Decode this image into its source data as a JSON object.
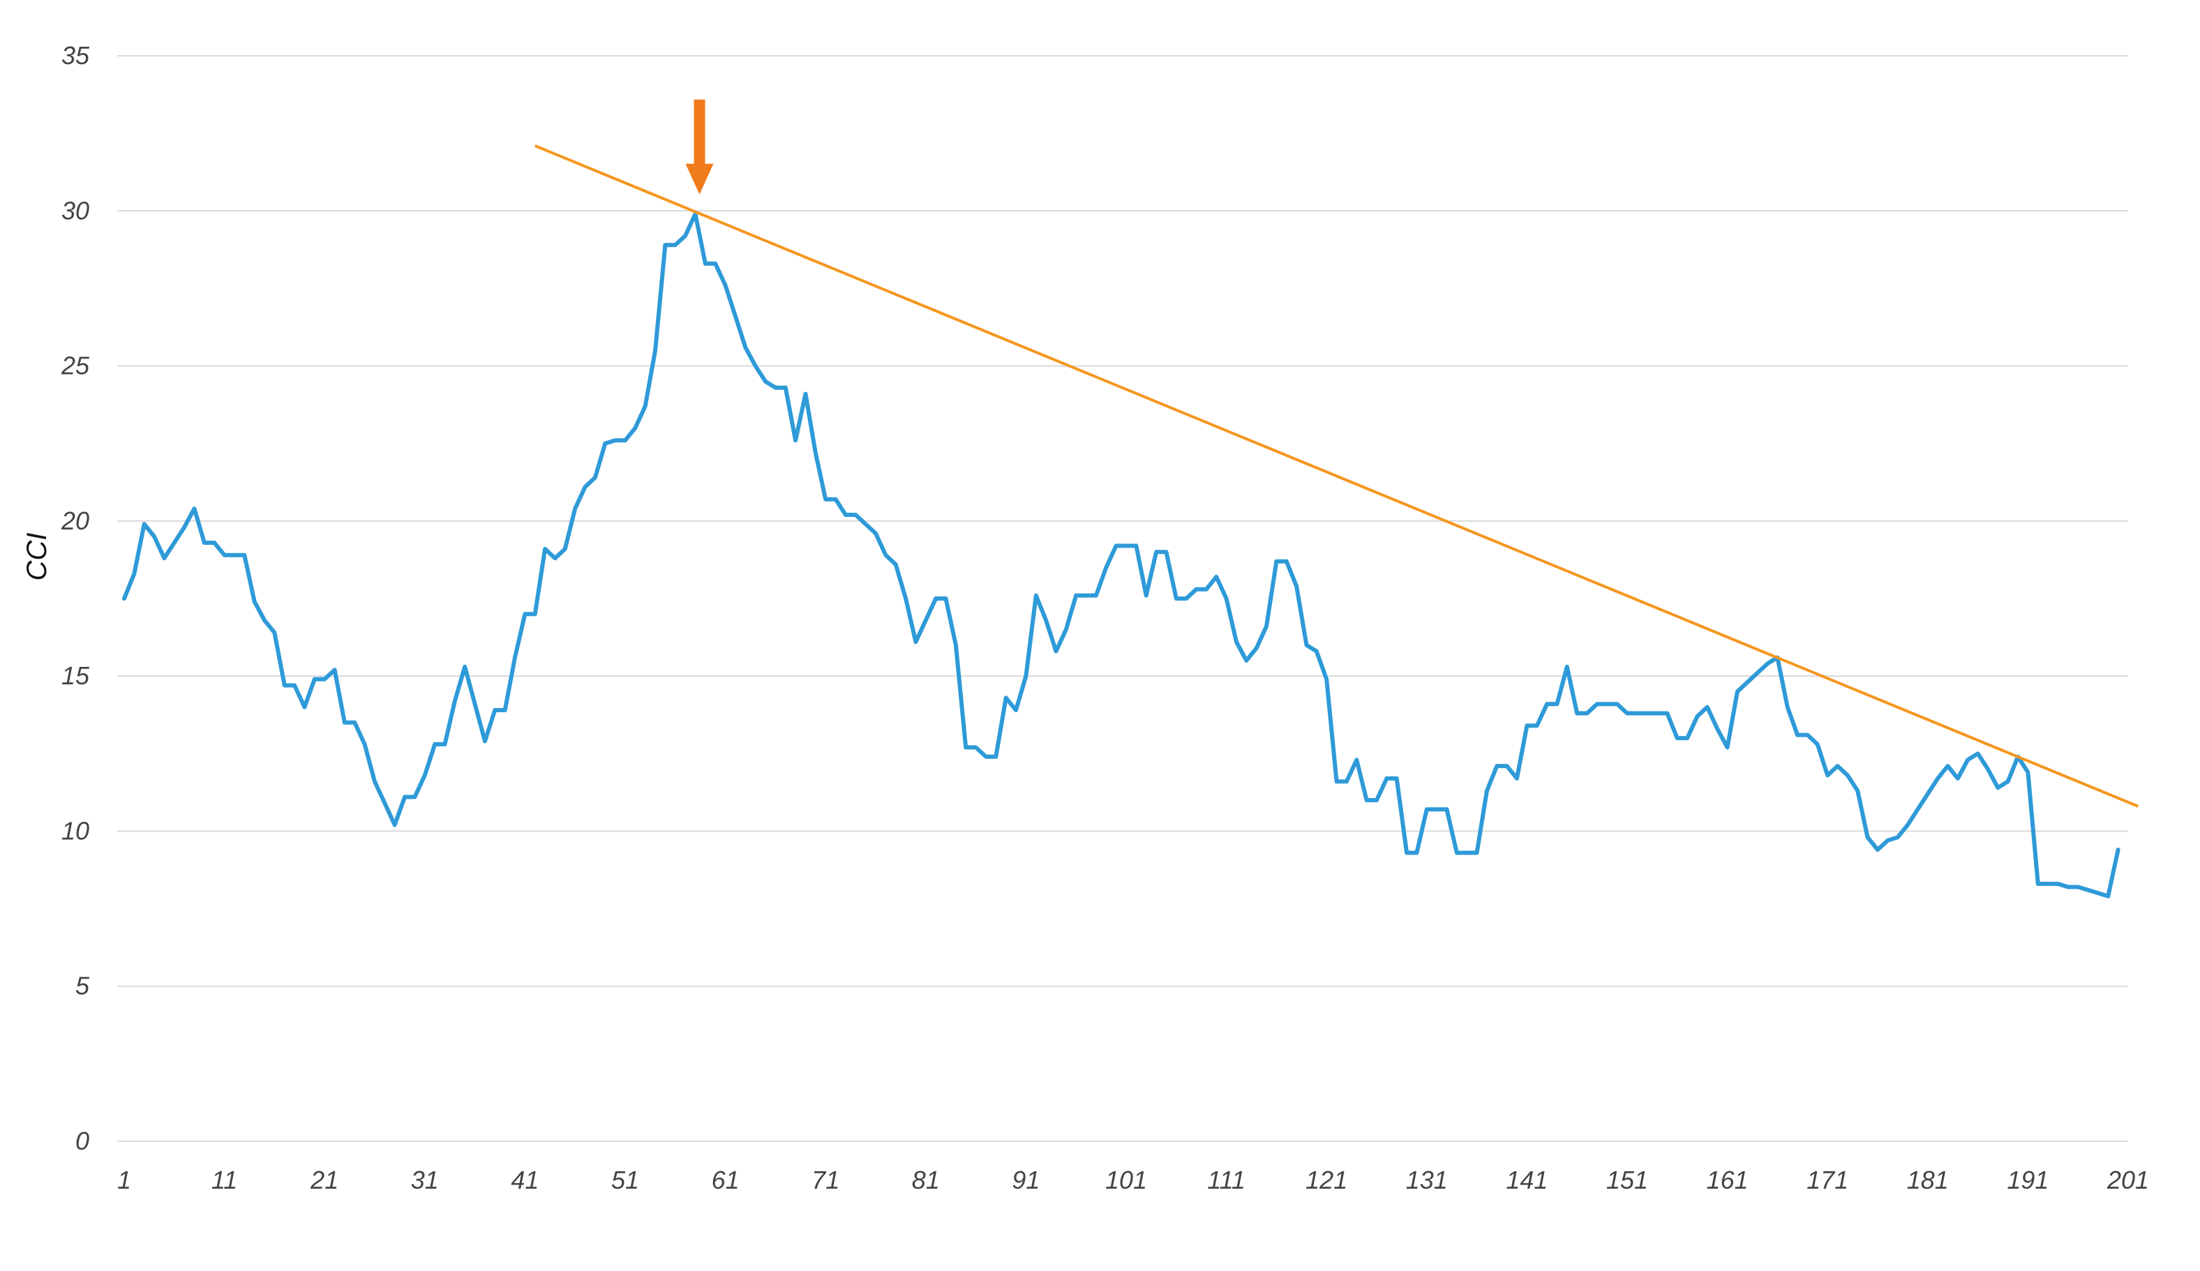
{
  "chart_data": {
    "type": "line",
    "title": "",
    "xlabel": "",
    "ylabel": "CCI",
    "ylim": [
      0,
      35
    ],
    "yticks": [
      0,
      5,
      10,
      15,
      20,
      25,
      30,
      35
    ],
    "xlim": [
      1,
      201
    ],
    "xticks": [
      1,
      11,
      21,
      31,
      41,
      51,
      61,
      71,
      81,
      91,
      101,
      111,
      121,
      131,
      141,
      151,
      161,
      171,
      181,
      191,
      201
    ],
    "grid": "horizontal",
    "legend": "none",
    "series": [
      {
        "color": "#2e9ad8",
        "points": [
          [
            1,
            17.5
          ],
          [
            2,
            18.3
          ],
          [
            3,
            19.9
          ],
          [
            4,
            19.5
          ],
          [
            5,
            18.8
          ],
          [
            6,
            19.3
          ],
          [
            7,
            19.8
          ],
          [
            8,
            20.4
          ],
          [
            9,
            19.3
          ],
          [
            10,
            19.3
          ],
          [
            11,
            18.9
          ],
          [
            12,
            18.9
          ],
          [
            13,
            18.9
          ],
          [
            14,
            17.4
          ],
          [
            15,
            16.8
          ],
          [
            16,
            16.4
          ],
          [
            17,
            14.7
          ],
          [
            18,
            14.7
          ],
          [
            19,
            14.0
          ],
          [
            20,
            14.9
          ],
          [
            21,
            14.9
          ],
          [
            22,
            15.2
          ],
          [
            23,
            13.5
          ],
          [
            24,
            13.5
          ],
          [
            25,
            12.8
          ],
          [
            26,
            11.6
          ],
          [
            27,
            10.9
          ],
          [
            28,
            10.2
          ],
          [
            29,
            11.1
          ],
          [
            30,
            11.1
          ],
          [
            31,
            11.8
          ],
          [
            32,
            12.8
          ],
          [
            33,
            12.8
          ],
          [
            34,
            14.2
          ],
          [
            35,
            15.3
          ],
          [
            36,
            14.1
          ],
          [
            37,
            12.9
          ],
          [
            38,
            13.9
          ],
          [
            39,
            13.9
          ],
          [
            40,
            15.6
          ],
          [
            41,
            17.0
          ],
          [
            42,
            17.0
          ],
          [
            43,
            19.1
          ],
          [
            44,
            18.8
          ],
          [
            45,
            19.1
          ],
          [
            46,
            20.4
          ],
          [
            47,
            21.1
          ],
          [
            48,
            21.4
          ],
          [
            49,
            22.5
          ],
          [
            50,
            22.6
          ],
          [
            51,
            22.6
          ],
          [
            52,
            23.0
          ],
          [
            53,
            23.7
          ],
          [
            54,
            25.5
          ],
          [
            55,
            28.9
          ],
          [
            56,
            28.9
          ],
          [
            57,
            29.2
          ],
          [
            58,
            29.9
          ],
          [
            59,
            28.3
          ],
          [
            60,
            28.3
          ],
          [
            61,
            27.6
          ],
          [
            62,
            26.6
          ],
          [
            63,
            25.6
          ],
          [
            64,
            25.0
          ],
          [
            65,
            24.5
          ],
          [
            66,
            24.3
          ],
          [
            67,
            24.3
          ],
          [
            68,
            22.6
          ],
          [
            69,
            24.1
          ],
          [
            70,
            22.2
          ],
          [
            71,
            20.7
          ],
          [
            72,
            20.7
          ],
          [
            73,
            20.2
          ],
          [
            74,
            20.2
          ],
          [
            75,
            19.9
          ],
          [
            76,
            19.6
          ],
          [
            77,
            18.9
          ],
          [
            78,
            18.6
          ],
          [
            79,
            17.5
          ],
          [
            80,
            16.1
          ],
          [
            81,
            16.8
          ],
          [
            82,
            17.5
          ],
          [
            83,
            17.5
          ],
          [
            84,
            16.0
          ],
          [
            85,
            12.7
          ],
          [
            86,
            12.7
          ],
          [
            87,
            12.4
          ],
          [
            88,
            12.4
          ],
          [
            89,
            14.3
          ],
          [
            90,
            13.9
          ],
          [
            91,
            15.0
          ],
          [
            92,
            17.6
          ],
          [
            93,
            16.8
          ],
          [
            94,
            15.8
          ],
          [
            95,
            16.5
          ],
          [
            96,
            17.6
          ],
          [
            97,
            17.6
          ],
          [
            98,
            17.6
          ],
          [
            99,
            18.5
          ],
          [
            100,
            19.2
          ],
          [
            101,
            19.2
          ],
          [
            102,
            19.2
          ],
          [
            103,
            17.6
          ],
          [
            104,
            19.0
          ],
          [
            105,
            19.0
          ],
          [
            106,
            17.5
          ],
          [
            107,
            17.5
          ],
          [
            108,
            17.8
          ],
          [
            109,
            17.8
          ],
          [
            110,
            18.2
          ],
          [
            111,
            17.5
          ],
          [
            112,
            16.1
          ],
          [
            113,
            15.5
          ],
          [
            114,
            15.9
          ],
          [
            115,
            16.6
          ],
          [
            116,
            18.7
          ],
          [
            117,
            18.7
          ],
          [
            118,
            17.9
          ],
          [
            119,
            16.0
          ],
          [
            120,
            15.8
          ],
          [
            121,
            14.9
          ],
          [
            122,
            11.6
          ],
          [
            123,
            11.6
          ],
          [
            124,
            12.3
          ],
          [
            125,
            11.0
          ],
          [
            126,
            11.0
          ],
          [
            127,
            11.7
          ],
          [
            128,
            11.7
          ],
          [
            129,
            9.3
          ],
          [
            130,
            9.3
          ],
          [
            131,
            10.7
          ],
          [
            132,
            10.7
          ],
          [
            133,
            10.7
          ],
          [
            134,
            9.3
          ],
          [
            135,
            9.3
          ],
          [
            136,
            9.3
          ],
          [
            137,
            11.3
          ],
          [
            138,
            12.1
          ],
          [
            139,
            12.1
          ],
          [
            140,
            11.7
          ],
          [
            141,
            13.4
          ],
          [
            142,
            13.4
          ],
          [
            143,
            14.1
          ],
          [
            144,
            14.1
          ],
          [
            145,
            15.3
          ],
          [
            146,
            13.8
          ],
          [
            147,
            13.8
          ],
          [
            148,
            14.1
          ],
          [
            149,
            14.1
          ],
          [
            150,
            14.1
          ],
          [
            151,
            13.8
          ],
          [
            152,
            13.8
          ],
          [
            153,
            13.8
          ],
          [
            154,
            13.8
          ],
          [
            155,
            13.8
          ],
          [
            156,
            13.0
          ],
          [
            157,
            13.0
          ],
          [
            158,
            13.7
          ],
          [
            159,
            14.0
          ],
          [
            160,
            13.3
          ],
          [
            161,
            12.7
          ],
          [
            162,
            14.5
          ],
          [
            163,
            14.8
          ],
          [
            164,
            15.1
          ],
          [
            165,
            15.4
          ],
          [
            166,
            15.6
          ],
          [
            167,
            14.0
          ],
          [
            168,
            13.1
          ],
          [
            169,
            13.1
          ],
          [
            170,
            12.8
          ],
          [
            171,
            11.8
          ],
          [
            172,
            12.1
          ],
          [
            173,
            11.8
          ],
          [
            174,
            11.3
          ],
          [
            175,
            9.8
          ],
          [
            176,
            9.4
          ],
          [
            177,
            9.7
          ],
          [
            178,
            9.8
          ],
          [
            179,
            10.2
          ],
          [
            180,
            10.7
          ],
          [
            181,
            11.2
          ],
          [
            182,
            11.7
          ],
          [
            183,
            12.1
          ],
          [
            184,
            11.7
          ],
          [
            185,
            12.3
          ],
          [
            186,
            12.5
          ],
          [
            187,
            12.0
          ],
          [
            188,
            11.4
          ],
          [
            189,
            11.6
          ],
          [
            190,
            12.4
          ],
          [
            191,
            11.9
          ],
          [
            192,
            8.3
          ],
          [
            193,
            8.3
          ],
          [
            194,
            8.3
          ],
          [
            195,
            8.2
          ],
          [
            196,
            8.2
          ],
          [
            197,
            8.1
          ],
          [
            198,
            8.0
          ],
          [
            199,
            7.9
          ],
          [
            200,
            9.4
          ]
        ]
      }
    ],
    "annotations": [
      {
        "type": "trendline",
        "color": "#f5961e",
        "from": [
          42,
          32.1
        ],
        "to": [
          202,
          10.8
        ]
      },
      {
        "type": "arrow",
        "color": "#f07b1a",
        "direction": "down",
        "points_to": [
          58,
          29.9
        ]
      }
    ]
  }
}
